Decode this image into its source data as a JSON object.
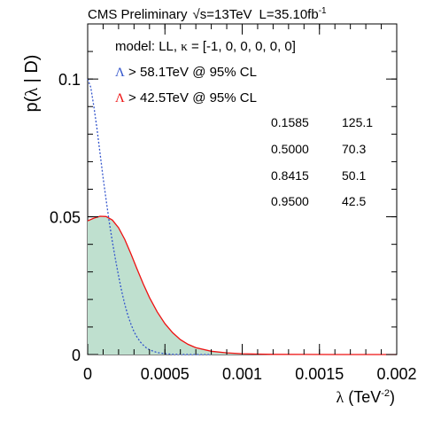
{
  "header": {
    "experiment": "CMS Preliminary",
    "energy_sqrt": "√",
    "energy_value": "s=13TeV",
    "lumi_prefix": "L=35.10fb",
    "lumi_exp": "-1"
  },
  "legend": {
    "model_prefix": "model: LL, ",
    "kappa_symbol": "κ",
    "kappa_values": " = [-1, 0, 0, 0, 0, 0]",
    "lambda_symbol": "Λ",
    "blue_limit": " > 58.1TeV @ 95% CL",
    "red_limit": " > 42.5TeV @ 95% CL",
    "blue_color": "#3355cc",
    "red_color": "#ee1111"
  },
  "quantile_table": [
    {
      "q": "0.1585",
      "v": "125.1"
    },
    {
      "q": "0.5000",
      "v": "70.3"
    },
    {
      "q": "0.8415",
      "v": "50.1"
    },
    {
      "q": "0.9500",
      "v": "42.5"
    }
  ],
  "chart_data": {
    "type": "line",
    "ylabel_prefix": "p(",
    "ylabel_lambda": "λ",
    "ylabel_suffix": " | D)",
    "xlabel_lambda": "λ",
    "xlabel_unit": " (TeV",
    "xlabel_exp": "-2",
    "xlabel_close": ")",
    "xlim": [
      0,
      0.002
    ],
    "ylim": [
      0,
      0.12
    ],
    "x_ticks": [
      {
        "value": 0,
        "label": "0"
      },
      {
        "value": 0.0005,
        "label": "0.0005"
      },
      {
        "value": 0.001,
        "label": "0.001"
      },
      {
        "value": 0.0015,
        "label": "0.0015"
      },
      {
        "value": 0.002,
        "label": "0.002"
      }
    ],
    "y_ticks": [
      {
        "value": 0,
        "label": "0"
      },
      {
        "value": 0.05,
        "label": "0.05"
      },
      {
        "value": 0.1,
        "label": "0.1"
      }
    ],
    "series": [
      {
        "style": "solid",
        "color": "#ee1111",
        "fill": "#bfe0cf",
        "x": [
          0,
          4e-05,
          8e-05,
          0.00012,
          0.00016,
          0.0002,
          0.00024,
          0.00028,
          0.00032,
          0.00036,
          0.0004,
          0.00045,
          0.0005,
          0.00055,
          0.0006,
          0.00065,
          0.0007,
          0.0008,
          0.0009,
          0.001,
          0.0011,
          0.0012,
          0.0014,
          0.0016,
          0.0018,
          0.002
        ],
        "y": [
          0.0485,
          0.0495,
          0.0502,
          0.0501,
          0.0488,
          0.046,
          0.0418,
          0.0365,
          0.031,
          0.0256,
          0.0207,
          0.0155,
          0.0112,
          0.0079,
          0.0054,
          0.0037,
          0.0025,
          0.0012,
          0.0006,
          0.0003,
          0.00015,
          8e-05,
          3e-05,
          1e-05,
          0,
          0
        ]
      },
      {
        "style": "dotted",
        "color": "#3355cc",
        "x": [
          0,
          2e-05,
          4e-05,
          6e-05,
          8e-05,
          0.0001,
          0.00012,
          0.00014,
          0.00016,
          0.00018,
          0.0002,
          0.00022,
          0.00024,
          0.00026,
          0.00028,
          0.0003,
          0.00032,
          0.00034,
          0.00036,
          0.00038,
          0.0004,
          0.00045,
          0.0005,
          0.00055,
          0.0006,
          0.0007,
          0.0008
        ],
        "y": [
          0.1,
          0.097,
          0.09,
          0.082,
          0.073,
          0.064,
          0.056,
          0.048,
          0.041,
          0.0345,
          0.0285,
          0.023,
          0.0182,
          0.0142,
          0.011,
          0.0083,
          0.0063,
          0.0046,
          0.0034,
          0.0024,
          0.0017,
          0.0007,
          0.0003,
          0.0001,
          4e-05,
          1e-05,
          0
        ]
      }
    ]
  }
}
